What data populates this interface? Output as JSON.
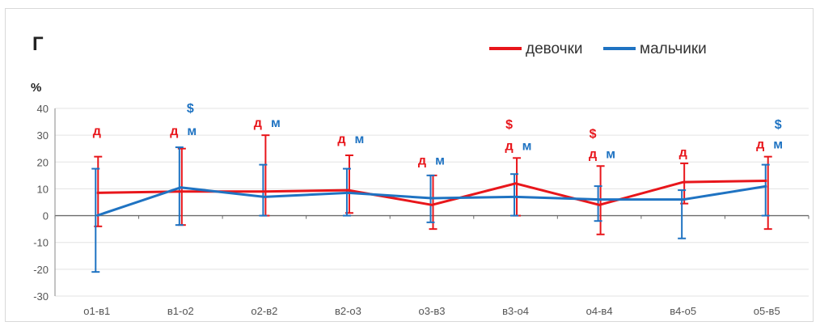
{
  "chart_data": {
    "type": "line",
    "panel_label": "Г",
    "ylabel": "%",
    "xlabel": "",
    "ylim": [
      -30,
      40
    ],
    "yticks": [
      -30,
      -20,
      -10,
      0,
      10,
      20,
      30,
      40
    ],
    "grid": true,
    "legend_position": "top-right",
    "categories": [
      "о1-в1",
      "в1-о2",
      "о2-в2",
      "в2-о3",
      "о3-в3",
      "в3-о4",
      "о4-в4",
      "в4-о5",
      "о5-в5"
    ],
    "series": [
      {
        "name": "девочки",
        "color": "#e8161b",
        "values": [
          8.5,
          9,
          9,
          9.5,
          4,
          12,
          4,
          12.5,
          13
        ],
        "err_low": [
          -4,
          -3.5,
          0,
          1,
          -5,
          0,
          -7,
          4.5,
          -5
        ],
        "err_high": [
          22,
          25,
          30,
          22.5,
          15,
          21.5,
          18.5,
          19.5,
          22
        ]
      },
      {
        "name": "мальчики",
        "color": "#1f73c2",
        "values": [
          0,
          10.5,
          7,
          8.5,
          6.5,
          7,
          6,
          6,
          11
        ],
        "err_low": [
          -21,
          -3.5,
          0,
          0,
          -2.5,
          0,
          -2,
          -8.5,
          0
        ],
        "err_high": [
          17.5,
          25.5,
          19,
          17.5,
          15,
          15.5,
          11,
          9.5,
          19
        ]
      }
    ],
    "annotations": [
      {
        "category": 0,
        "text": "д",
        "color": "#e8161b",
        "y": 30,
        "dx": 0
      },
      {
        "category": 1,
        "text": "д",
        "color": "#e8161b",
        "y": 30,
        "dx": -8
      },
      {
        "category": 1,
        "text": "м",
        "color": "#1f73c2",
        "y": 30,
        "dx": 14
      },
      {
        "category": 1,
        "text": "$",
        "color": "#1f73c2",
        "y": 38.5,
        "dx": 12
      },
      {
        "category": 2,
        "text": "д",
        "color": "#e8161b",
        "y": 33,
        "dx": -8
      },
      {
        "category": 2,
        "text": "м",
        "color": "#1f73c2",
        "y": 33,
        "dx": 14
      },
      {
        "category": 3,
        "text": "д",
        "color": "#e8161b",
        "y": 27,
        "dx": -8
      },
      {
        "category": 3,
        "text": "м",
        "color": "#1f73c2",
        "y": 27,
        "dx": 14
      },
      {
        "category": 4,
        "text": "д",
        "color": "#e8161b",
        "y": 19,
        "dx": -12
      },
      {
        "category": 4,
        "text": "м",
        "color": "#1f73c2",
        "y": 19,
        "dx": 10
      },
      {
        "category": 5,
        "text": "$",
        "color": "#e8161b",
        "y": 32.5,
        "dx": -8
      },
      {
        "category": 5,
        "text": "д",
        "color": "#e8161b",
        "y": 24.5,
        "dx": -8
      },
      {
        "category": 5,
        "text": "м",
        "color": "#1f73c2",
        "y": 24.5,
        "dx": 14
      },
      {
        "category": 6,
        "text": "$",
        "color": "#e8161b",
        "y": 29,
        "dx": -8
      },
      {
        "category": 6,
        "text": "д",
        "color": "#e8161b",
        "y": 21.5,
        "dx": -8
      },
      {
        "category": 6,
        "text": "м",
        "color": "#1f73c2",
        "y": 21.5,
        "dx": 14
      },
      {
        "category": 7,
        "text": "д",
        "color": "#e8161b",
        "y": 22,
        "dx": 0
      },
      {
        "category": 8,
        "text": "$",
        "color": "#1f73c2",
        "y": 32.5,
        "dx": 14
      },
      {
        "category": 8,
        "text": "д",
        "color": "#e8161b",
        "y": 25,
        "dx": -8
      },
      {
        "category": 8,
        "text": "м",
        "color": "#1f73c2",
        "y": 25,
        "dx": 14
      }
    ]
  }
}
